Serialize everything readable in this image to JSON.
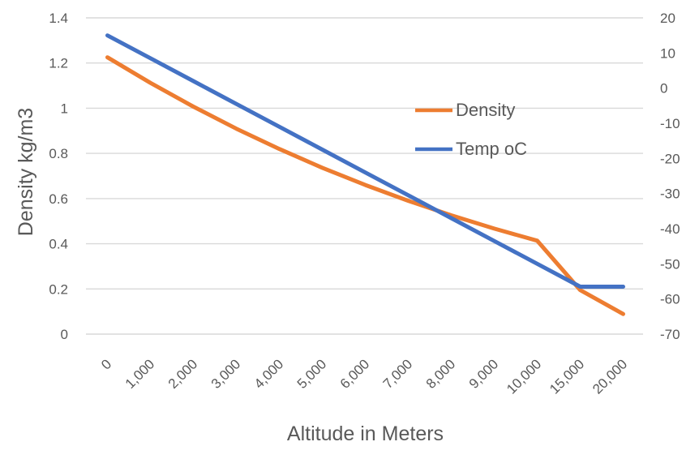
{
  "chart_data": {
    "type": "line",
    "title": "",
    "xlabel": "Altitude in Meters",
    "ylabel_left": "Density kg/m3",
    "ylabel_right": "",
    "categories": [
      "0",
      "1,000",
      "2,000",
      "3,000",
      "4,000",
      "5,000",
      "6,000",
      "7,000",
      "8,000",
      "9,000",
      "10,000",
      "15,000",
      "20,000"
    ],
    "series": [
      {
        "name": "Density",
        "axis": "left",
        "color": "#ED7D31",
        "values": [
          1.225,
          1.112,
          1.007,
          0.9093,
          0.8194,
          0.7364,
          0.6601,
          0.59,
          0.5258,
          0.4671,
          0.4135,
          0.1948,
          0.0889
        ]
      },
      {
        "name": "Temp oC",
        "axis": "right",
        "color": "#4472C4",
        "values": [
          15,
          8.5,
          2,
          -4.5,
          -11,
          -17.5,
          -24,
          -30.5,
          -37,
          -43.5,
          -50,
          -56.5,
          -56.5
        ]
      }
    ],
    "axis_left": {
      "min": 0,
      "max": 1.4,
      "step": 0.2,
      "tick_labels": [
        "0",
        "0.2",
        "0.4",
        "0.6",
        "0.8",
        "1",
        "1.2",
        "1.4"
      ]
    },
    "axis_right": {
      "min": -70,
      "max": 20,
      "step": 10,
      "tick_labels": [
        "-70",
        "-60",
        "-50",
        "-40",
        "-30",
        "-20",
        "-10",
        "0",
        "10",
        "20"
      ]
    },
    "legend": {
      "position": "inside-center-right",
      "entries": [
        "Density",
        "Temp oC"
      ]
    },
    "grid": true,
    "styles": {
      "grid_color": "#D9D9D9",
      "text_color": "#595959",
      "background": "#FFFFFF",
      "series_line_width": 5
    }
  }
}
